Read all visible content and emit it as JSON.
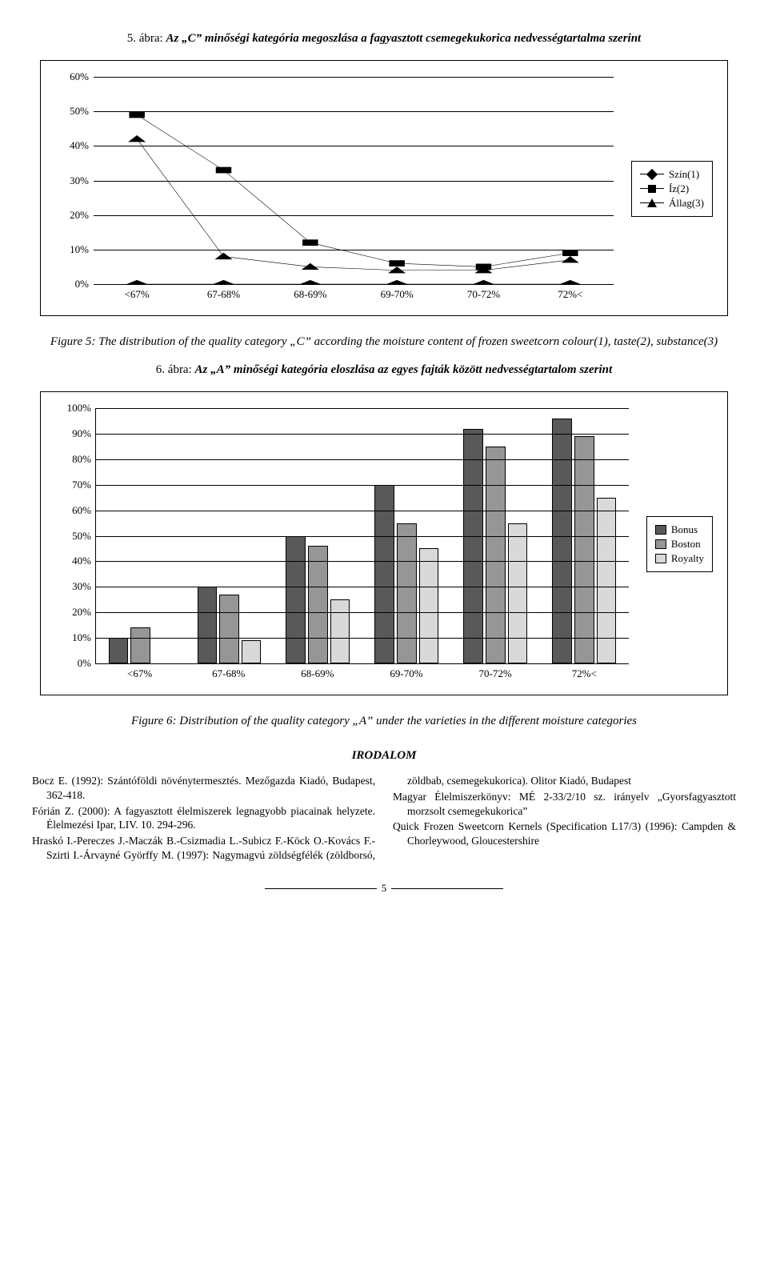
{
  "fig5": {
    "caption_prefix": "5. ábra:",
    "caption": "Az „C” minőségi kategória megoszlása a fagyasztott csemegekukorica nedvességtartalma szerint",
    "categories": [
      "<67%",
      "67-68%",
      "68-69%",
      "69-70%",
      "70-72%",
      "72%<"
    ],
    "series": [
      {
        "name": "Szín(1)",
        "marker": "diamond",
        "color": "#000000",
        "values": [
          0,
          0,
          0,
          0,
          0,
          0
        ]
      },
      {
        "name": "Íz(2)",
        "marker": "square",
        "color": "#000000",
        "values": [
          49,
          33,
          12,
          6,
          5,
          9
        ]
      },
      {
        "name": "Állag(3)",
        "marker": "triangle",
        "color": "#000000",
        "values": [
          42,
          8,
          5,
          4,
          4,
          7
        ]
      }
    ],
    "ylim": [
      0,
      60
    ],
    "ystep": 10,
    "background": "#ffffff",
    "line_width": 1.5,
    "marker_size": 10
  },
  "fig5_subcaption": "Figure 5: The distribution of the quality category „C” according the moisture content of frozen sweetcorn colour(1), taste(2), substance(3)",
  "fig6": {
    "caption_prefix": "6. ábra:",
    "caption": "Az „A” minőségi kategória eloszlása az egyes fajták között nedvességtartalom szerint",
    "categories": [
      "<67%",
      "67-68%",
      "68-69%",
      "69-70%",
      "70-72%",
      "72%<"
    ],
    "series": [
      {
        "name": "Bonus",
        "color": "#595959",
        "values": [
          10,
          30,
          50,
          70,
          92,
          96
        ]
      },
      {
        "name": "Boston",
        "color": "#969696",
        "values": [
          14,
          27,
          46,
          55,
          85,
          89
        ]
      },
      {
        "name": "Royalty",
        "color": "#d9d9d9",
        "values": [
          0,
          9,
          25,
          45,
          55,
          65
        ]
      }
    ],
    "ylim": [
      0,
      100
    ],
    "ystep": 10,
    "background": "#ffffff",
    "bar_border": "#000000"
  },
  "fig6_subcaption": "Figure 6: Distribution of the quality category „A” under the varieties in the different moisture categories",
  "section_heading": "IRODALOM",
  "refs": {
    "r1": "Bocz E. (1992): Szántóföldi növénytermesztés. Mezőgazda Kiadó, Budapest, 362-418.",
    "r2": "Fórián Z. (2000): A fagyasztott élelmiszerek legnagyobb piacainak helyzete. Élelmezési Ipar, LIV. 10. 294-296.",
    "r3": "Hraskó I.-Pereczes J.-Maczák B.-Csizmadia L.-Subicz F.-Köck O.-Kovács F.-Szirti I.-Árvayné Györffy M. (1997): Nagymagvú zöldségfélék (zöldborsó, zöldbab, csemegekukorica). Olitor Kiadó, Budapest",
    "r4": "Magyar Élelmiszerkönyv: MÉ 2-33/2/10 sz. irányelv „Gyorsfagyasztott morzsolt csemegekukorica”",
    "r5": "Quick Frozen Sweetcorn Kernels (Specification L17/3) (1996): Campden & Chorleywood, Gloucestershire"
  },
  "page_number": "5"
}
